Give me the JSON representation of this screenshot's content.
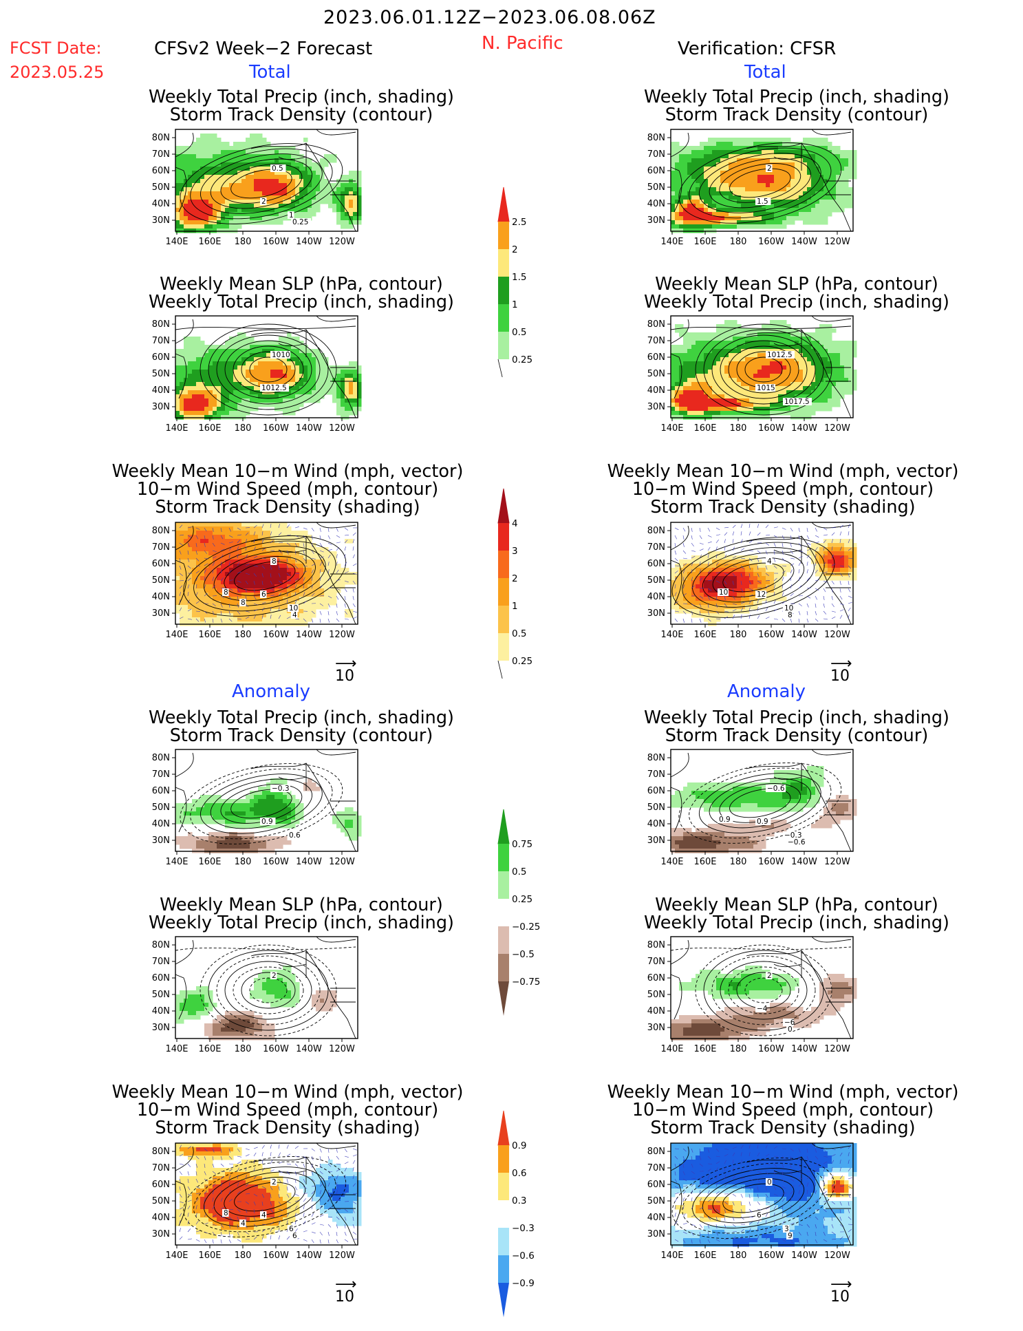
{
  "header": {
    "date_range": "2023.06.01.12Z−2023.06.08.06Z",
    "region": "N. Pacific",
    "fcst_label": "FCST Date:",
    "fcst_date": "2023.05.25",
    "model_title": "CFSv2 Week−2 Forecast",
    "verification_title": "Verification: CFSR"
  },
  "sections": {
    "total": "Total",
    "anomaly": "Anomaly"
  },
  "titles": {
    "precip_storm": [
      "Weekly Total Precip (inch, shading)",
      "Storm Track Density (contour)"
    ],
    "slp_precip": [
      "Weekly Mean SLP (hPa, contour)",
      "Weekly Total Precip (inch, shading)"
    ],
    "wind_storm": [
      "Weekly Mean 10−m Wind (mph, vector)",
      "10−m Wind Speed (mph, contour)",
      "Storm Track Density (shading)"
    ]
  },
  "axes": {
    "lat_labels": [
      "80N",
      "70N",
      "60N",
      "50N",
      "40N",
      "30N"
    ],
    "lon_labels": [
      "140E",
      "160E",
      "180",
      "160W",
      "140W",
      "120W"
    ]
  },
  "vector_ref": "10",
  "contour_labels": {
    "fc_tot_precip": [
      "0.5",
      "2",
      "1",
      "0.25"
    ],
    "vf_tot_precip": [
      "2",
      "1.5"
    ],
    "fc_tot_slp": [
      "1010",
      "1012.5"
    ],
    "vf_tot_slp": [
      "1012.5",
      "1015",
      "1017.5"
    ],
    "fc_tot_wind": [
      "8",
      "6",
      "10",
      "4",
      "8",
      "8"
    ],
    "vf_tot_wind": [
      "4",
      "12",
      "10",
      "8",
      "10"
    ],
    "fc_anom_precip": [
      "−0.3",
      "0.9",
      "0.6"
    ],
    "vf_anom_precip": [
      "−0.6",
      "0.9",
      "−0.3",
      "−0.6",
      "0.9"
    ],
    "fc_anom_slp": [
      "2"
    ],
    "vf_anom_slp": [
      "2",
      "−4",
      "−6",
      "0"
    ],
    "fc_anom_wind": [
      "2",
      "4",
      "6",
      "6",
      "8",
      "4"
    ],
    "vf_anom_wind": [
      "0",
      "6",
      "3",
      "9"
    ]
  },
  "colorbars": {
    "precip_total": {
      "labels": [
        "2.5",
        "2",
        "1.5",
        "1",
        "0.5",
        "0.25"
      ],
      "colors": [
        "#e8281e",
        "#f9a01c",
        "#fde87a",
        "#1f9e1f",
        "#3fd23f",
        "#a8f0a0"
      ]
    },
    "storm_total": {
      "labels": [
        "4",
        "3",
        "2",
        "1",
        "0.5",
        "0.25"
      ],
      "colors": [
        "#a3101a",
        "#e8281e",
        "#f86a1c",
        "#f9a01c",
        "#fcc34a",
        "#fdf0a0"
      ]
    },
    "precip_anom": {
      "labels": [
        "0.75",
        "0.5",
        "0.25",
        "−0.25",
        "−0.5",
        "−0.75"
      ],
      "colors": [
        "#1f9e1f",
        "#3fd23f",
        "#a8f0a0",
        "#ffffff",
        "#dcbcb0",
        "#a8806c",
        "#6e4a3a"
      ]
    },
    "storm_anom": {
      "labels": [
        "0.9",
        "0.6",
        "0.3",
        "−0.3",
        "−0.6",
        "−0.9"
      ],
      "colors": [
        "#e8401e",
        "#f9a01c",
        "#fde87a",
        "#ffffff",
        "#a8e4f8",
        "#4aa8f0",
        "#1a5ce0"
      ]
    }
  }
}
